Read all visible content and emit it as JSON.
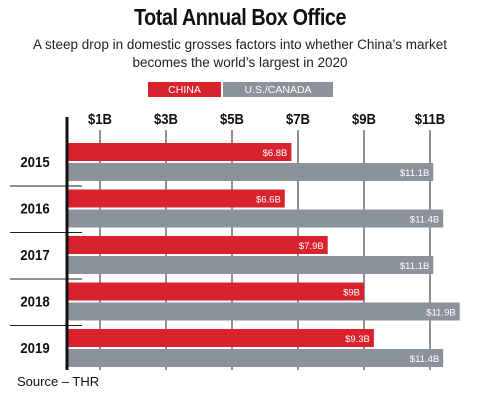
{
  "title": "Total Annual Box Office",
  "subtitle_line1": "A steep drop in domestic grosses factors into whether China’s market",
  "subtitle_line2": "becomes the world’s largest in 2020",
  "source": "Source – THR",
  "colors": {
    "china": "#d8222d",
    "us": "#8b9299",
    "axis": "#111111",
    "bg": "#ffffff"
  },
  "chart_data": {
    "type": "bar",
    "orientation": "horizontal",
    "categories": [
      "2015",
      "2016",
      "2017",
      "2018",
      "2019"
    ],
    "series": [
      {
        "name": "CHINA",
        "values": [
          6.8,
          6.6,
          7.9,
          9,
          9.3
        ],
        "labels": [
          "$6.8B",
          "$6.6B",
          "$7.9B",
          "$9B",
          "$9.3B"
        ]
      },
      {
        "name": "U.S./CANADA",
        "values": [
          11.1,
          11.4,
          11.1,
          11.9,
          11.4
        ],
        "labels": [
          "$11.1B",
          "$11.4B",
          "$11.1B",
          "$11.9B",
          "$11.4B"
        ]
      }
    ],
    "ticks": [
      1,
      3,
      5,
      7,
      9,
      11
    ],
    "tick_labels": [
      "$1B",
      "$3B",
      "$5B",
      "$7B",
      "$9B",
      "$11B"
    ],
    "xlim": [
      0,
      12
    ],
    "legend_position": "top",
    "grid": true
  }
}
